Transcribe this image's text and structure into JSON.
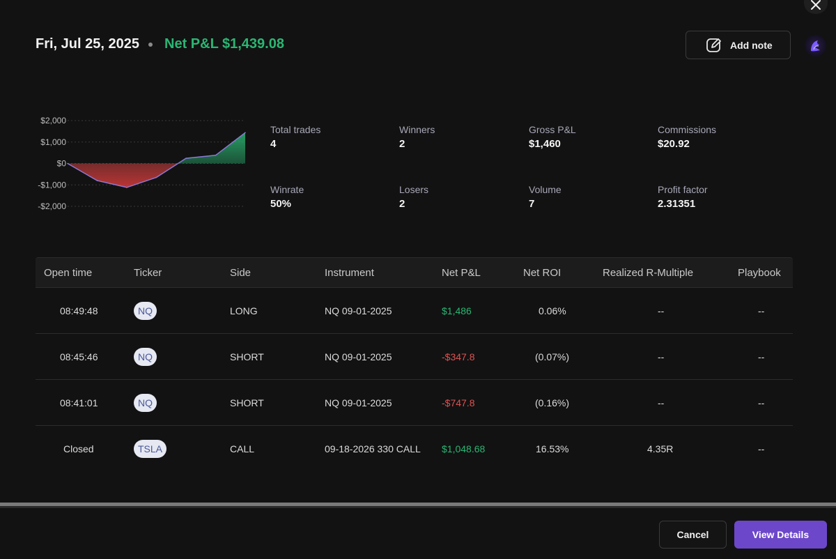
{
  "header": {
    "date": "Fri, Jul 25, 2025",
    "net_pnl": "Net P&L $1,439.08",
    "add_note_label": "Add note"
  },
  "colors": {
    "positive": "#2bb673",
    "negative": "#e05252",
    "accent": "#6c47c9"
  },
  "chart_data": {
    "type": "area",
    "x": [
      0,
      1,
      2,
      3,
      4,
      5,
      6
    ],
    "values": [
      0,
      -800,
      -1120,
      -650,
      240,
      380,
      1439
    ],
    "ylim": [
      -2000,
      2000
    ],
    "yticks": [
      2000,
      1000,
      0,
      -1000,
      -2000
    ],
    "ytick_labels": [
      "$2,000",
      "$1,000",
      "$0",
      "-$1,000",
      "-$2,000"
    ],
    "grid": true,
    "xlabel": "",
    "ylabel": ""
  },
  "stats": [
    {
      "label": "Total trades",
      "value": "4"
    },
    {
      "label": "Winners",
      "value": "2"
    },
    {
      "label": "Gross P&L",
      "value": "$1,460"
    },
    {
      "label": "Commissions",
      "value": "$20.92"
    },
    {
      "label": "Winrate",
      "value": "50%"
    },
    {
      "label": "Losers",
      "value": "2"
    },
    {
      "label": "Volume",
      "value": "7"
    },
    {
      "label": "Profit factor",
      "value": "2.31351"
    }
  ],
  "table": {
    "columns": [
      "Open time",
      "Ticker",
      "Side",
      "Instrument",
      "Net P&L",
      "Net ROI",
      "Realized R-Multiple",
      "Playbook"
    ],
    "rows": [
      {
        "open_time": "08:49:48",
        "ticker": "NQ",
        "side": "LONG",
        "instrument": "NQ 09-01-2025",
        "net_pnl": "$1,486",
        "pnl_sign": "pos",
        "net_roi": "0.06%",
        "r_multiple": "--",
        "playbook": "--"
      },
      {
        "open_time": "08:45:46",
        "ticker": "NQ",
        "side": "SHORT",
        "instrument": "NQ 09-01-2025",
        "net_pnl": "-$347.8",
        "pnl_sign": "neg",
        "net_roi": "(0.07%)",
        "r_multiple": "--",
        "playbook": "--"
      },
      {
        "open_time": "08:41:01",
        "ticker": "NQ",
        "side": "SHORT",
        "instrument": "NQ 09-01-2025",
        "net_pnl": "-$747.8",
        "pnl_sign": "neg",
        "net_roi": "(0.16%)",
        "r_multiple": "--",
        "playbook": "--"
      },
      {
        "open_time": "Closed",
        "ticker": "TSLA",
        "side": "CALL",
        "instrument": "09-18-2026 330 CALL",
        "net_pnl": "$1,048.68",
        "pnl_sign": "pos",
        "net_roi": "16.53%",
        "r_multiple": "4.35R",
        "playbook": "--"
      }
    ]
  },
  "footer": {
    "cancel_label": "Cancel",
    "view_details_label": "View Details"
  }
}
